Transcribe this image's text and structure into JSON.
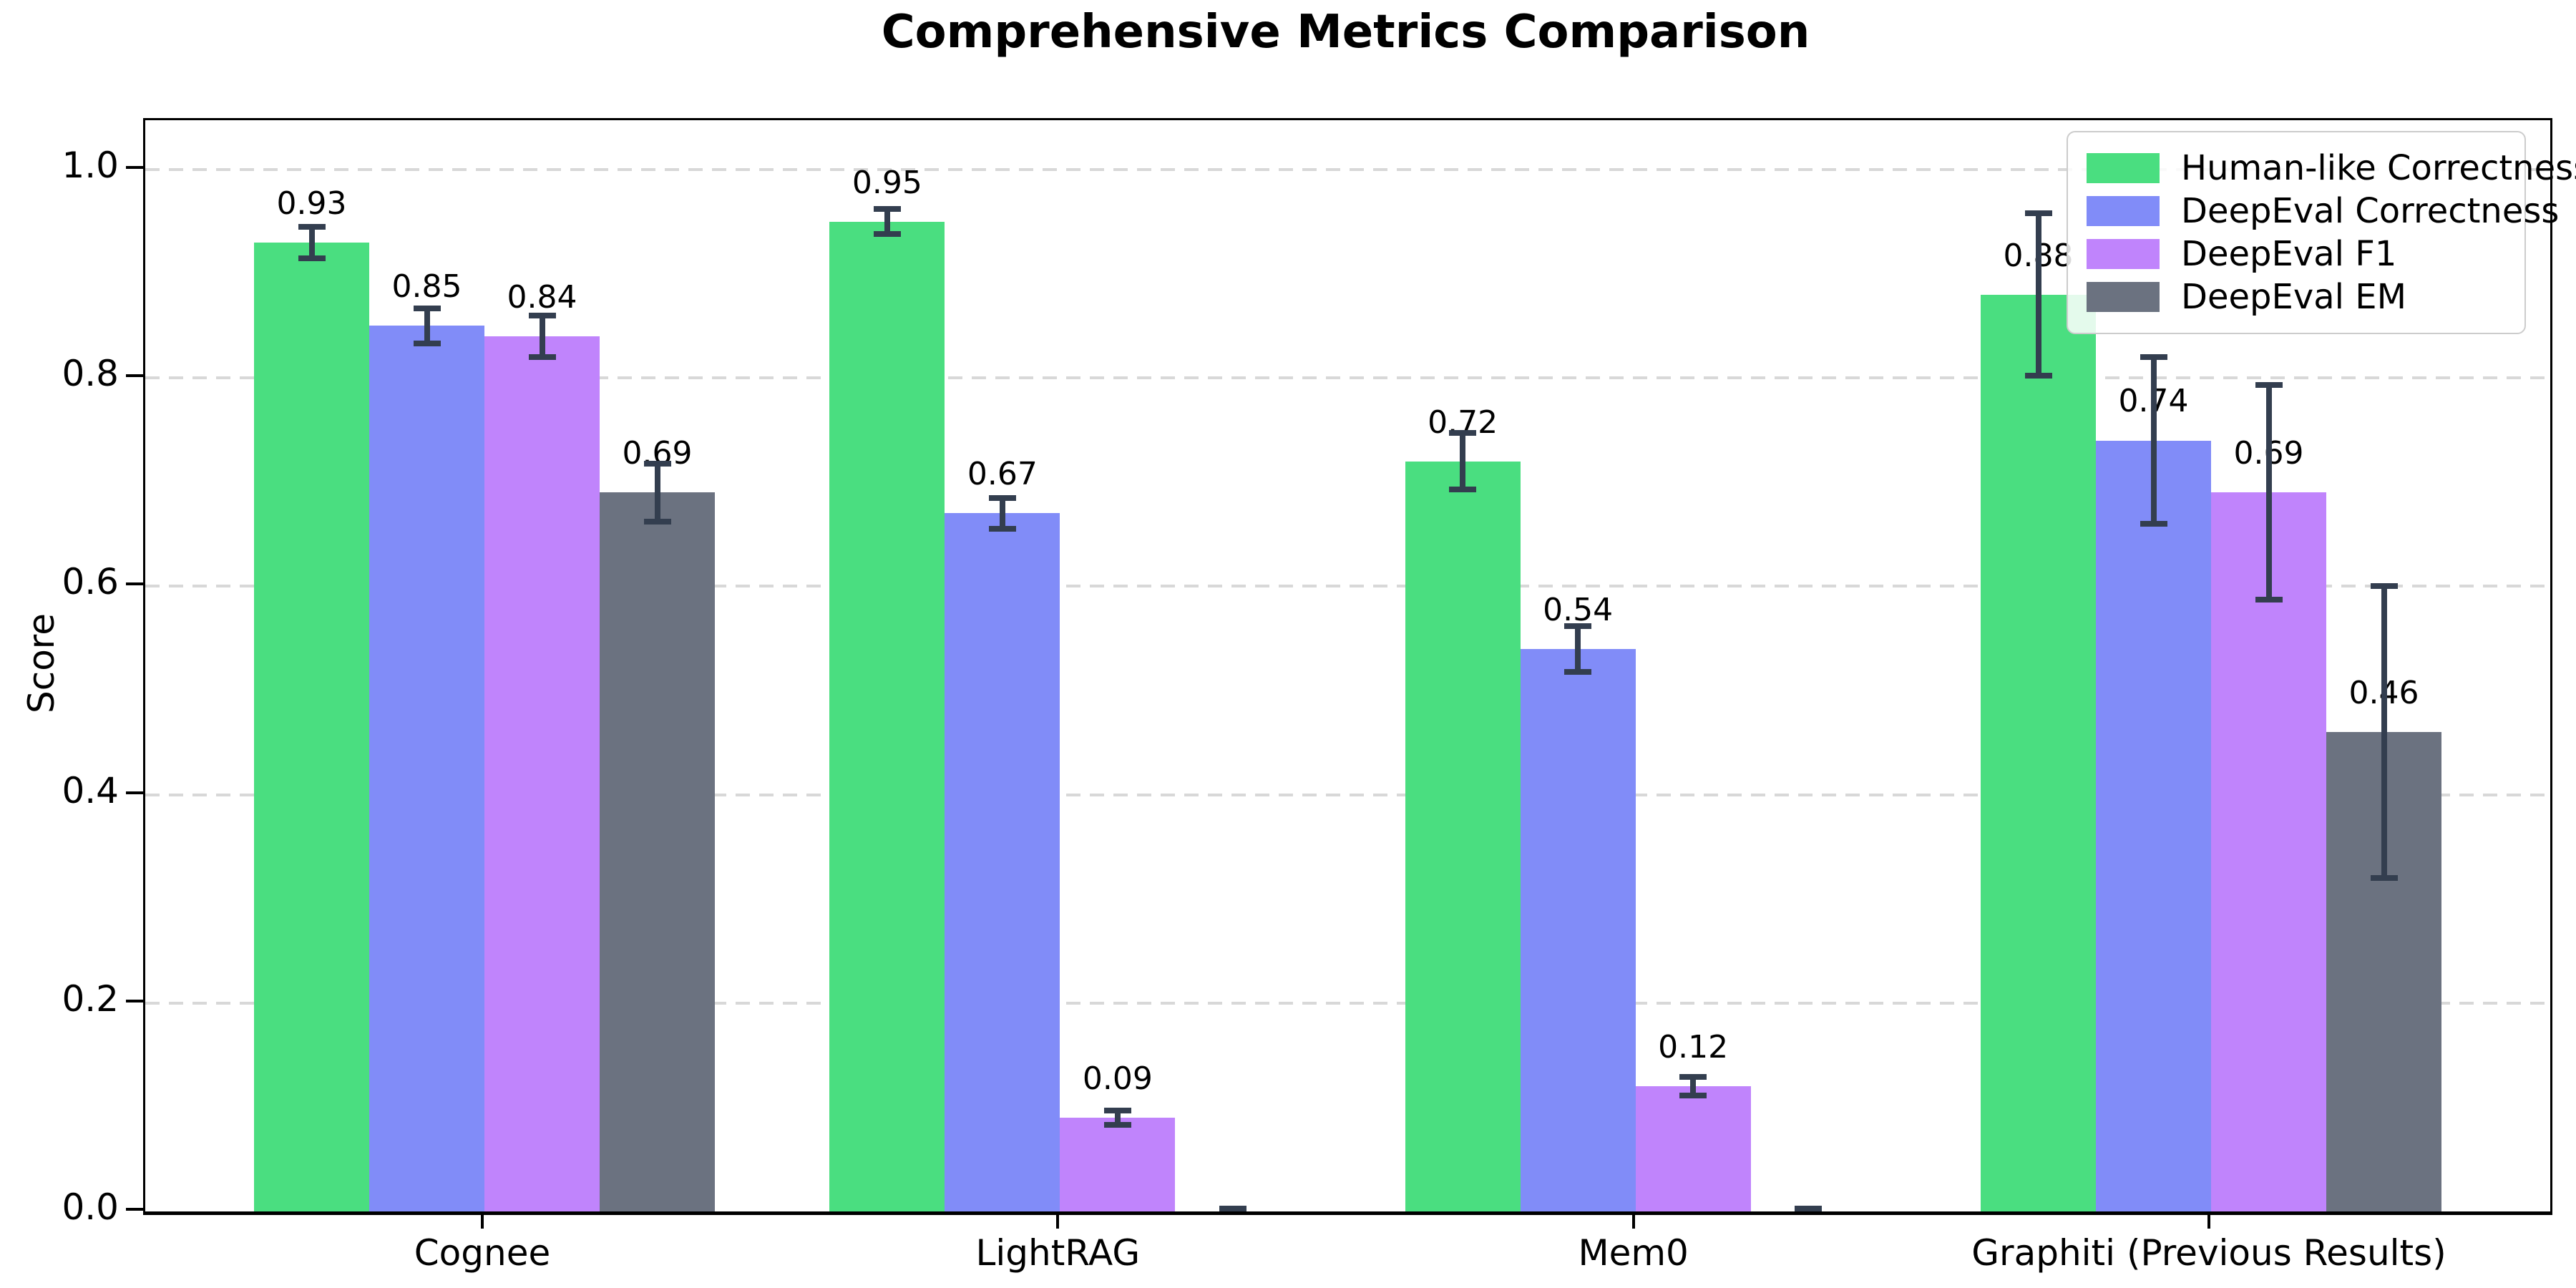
{
  "chart_data": {
    "type": "bar",
    "title": "Comprehensive Metrics Comparison",
    "xlabel": "",
    "ylabel": "Score",
    "ylim": [
      0,
      1.048
    ],
    "yticks": [
      0.0,
      0.2,
      0.4,
      0.6,
      0.8,
      1.0
    ],
    "ytick_labels": [
      "0.0",
      "0.2",
      "0.4",
      "0.6",
      "0.8",
      "1.0"
    ],
    "grid": "horizontal-dashed",
    "legend_position": "upper right",
    "categories": [
      "Cognee",
      "LightRAG",
      "Mem0",
      "Graphiti (Previous Results)"
    ],
    "series": [
      {
        "name": "Human-like Correctness",
        "color": "#4ade80",
        "values": [
          0.93,
          0.95,
          0.72,
          0.88
        ],
        "errors": [
          0.015,
          0.012,
          0.027,
          0.078
        ],
        "labels": [
          "0.93",
          "0.95",
          "0.72",
          "0.88"
        ]
      },
      {
        "name": "DeepEval Correctness",
        "color": "#818cf8",
        "values": [
          0.85,
          0.67,
          0.54,
          0.74
        ],
        "errors": [
          0.017,
          0.015,
          0.022,
          0.08
        ],
        "labels": [
          "0.85",
          "0.67",
          "0.54",
          "0.74"
        ]
      },
      {
        "name": "DeepEval F1",
        "color": "#c084fc",
        "values": [
          0.84,
          0.09,
          0.12,
          0.69
        ],
        "errors": [
          0.02,
          0.007,
          0.009,
          0.103
        ],
        "labels": [
          "0.84",
          "0.09",
          "0.12",
          "0.69"
        ]
      },
      {
        "name": "DeepEval EM",
        "color": "#6b7280",
        "values": [
          0.69,
          0.0,
          0.0,
          0.46
        ],
        "errors": [
          0.028,
          0.002,
          0.002,
          0.14
        ],
        "labels": [
          "0.69",
          "",
          "",
          "0.46"
        ]
      }
    ],
    "colors": {
      "error_bar": "#333e4f",
      "gridline": "#d8d8d8",
      "axis": "#000000",
      "legend_border": "#cccccc",
      "background": "#ffffff"
    }
  }
}
